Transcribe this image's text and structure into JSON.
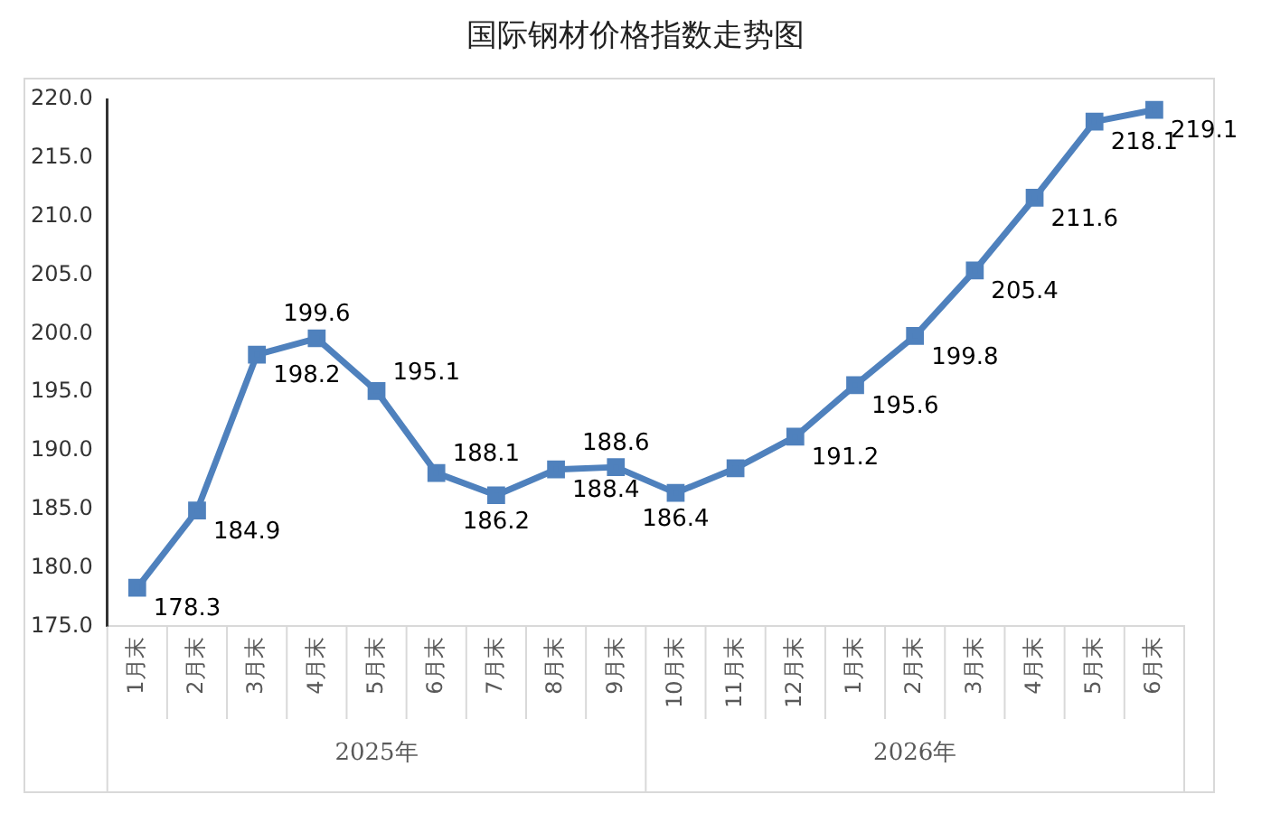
{
  "chart_data": {
    "type": "line",
    "title": "国际钢材价格指数走势图",
    "categories": [
      "1月末",
      "2月末",
      "3月末",
      "4月末",
      "5月末",
      "6月末",
      "7月末",
      "8月末",
      "9月末",
      "10月末",
      "11月末",
      "12月末",
      "1月末",
      "2月末",
      "3月末",
      "4月末",
      "5月末",
      "6月末"
    ],
    "annotations": [
      "2025年",
      "2026年"
    ],
    "series": [
      {
        "color": "#4f81bd",
        "values": [
          178.3,
          184.9,
          198.2,
          199.6,
          195.1,
          188.1,
          186.2,
          188.4,
          188.6,
          186.4,
          188.5,
          191.2,
          195.6,
          199.8,
          205.4,
          211.6,
          218.1,
          219.1
        ],
        "value_labels": [
          "178.3",
          "184.9",
          "198.2",
          "199.6",
          "195.1",
          "188.1",
          "186.2",
          "188.4",
          "188.6",
          "186.4",
          null,
          "191.2",
          "195.6",
          "199.8",
          "205.4",
          "211.6",
          "218.1",
          "219.1"
        ]
      }
    ],
    "ylim": [
      175,
      220
    ],
    "yticks": [
      {
        "value": 175,
        "label": "175.0"
      },
      {
        "value": 180,
        "label": "180.0"
      },
      {
        "value": 185,
        "label": "185.0"
      },
      {
        "value": 190,
        "label": "190.0"
      },
      {
        "value": 195,
        "label": "195.0"
      },
      {
        "value": 200,
        "label": "200.0"
      },
      {
        "value": 205,
        "label": "205.0"
      },
      {
        "value": 210,
        "label": "210.0"
      },
      {
        "value": 215,
        "label": "215.0"
      },
      {
        "value": 220,
        "label": "220.0"
      }
    ],
    "grid": false,
    "legend": false,
    "marker": "square",
    "line_style": "solid"
  }
}
